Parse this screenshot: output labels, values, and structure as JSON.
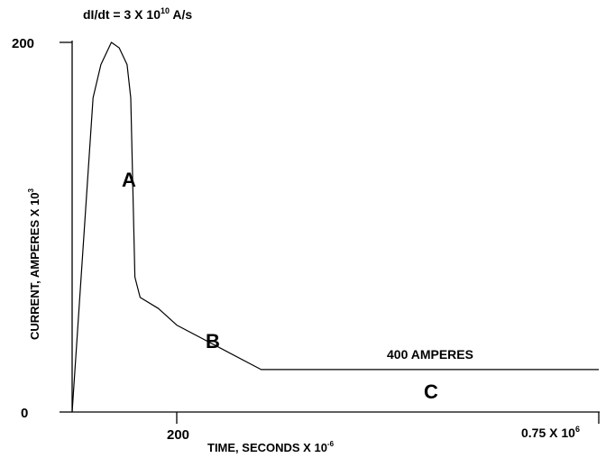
{
  "chart_data": {
    "type": "line",
    "title_main": "dI/dt = 3 X 10",
    "title_sup": "10",
    "title_tail": " A/s",
    "xlabel_main": "TIME, SECONDS X 10",
    "xlabel_sup": "-6",
    "ylabel_main": "CURRENT, AMPERES X 10",
    "ylabel_sup": "3",
    "y_ticks": [
      "200",
      "0"
    ],
    "x_tick_200": "200",
    "x_tick_end_main": "0.75 X 10",
    "x_tick_end_sup": "6",
    "region_labels": [
      "A",
      "B",
      "C"
    ],
    "annotation": "400 AMPERES",
    "grid": false,
    "series": [
      {
        "x": [
          0,
          40,
          55,
          75,
          90,
          105,
          112,
          120,
          130,
          165,
          200,
          260,
          500
        ],
        "y": [
          0,
          170,
          188,
          200,
          197,
          188,
          170,
          73,
          62,
          56,
          47,
          23,
          23
        ]
      }
    ]
  }
}
